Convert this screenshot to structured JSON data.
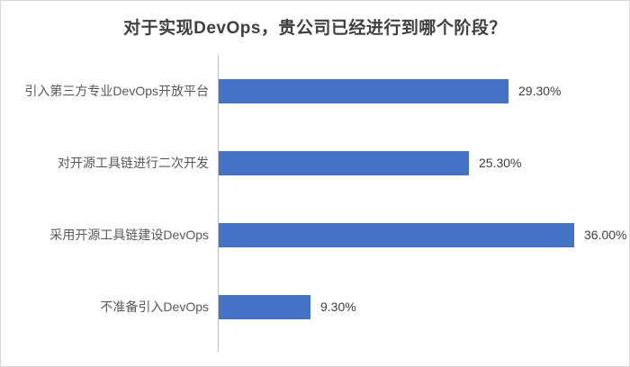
{
  "chart_data": {
    "type": "bar",
    "orientation": "horizontal",
    "title": "对于实现DevOps，贵公司已经进行到哪个阶段？",
    "categories": [
      "引入第三方专业DevOps开放平台",
      "对开源工具链进行二次开发",
      "采用开源工具链建设DevOps",
      "不准备引入DevOps"
    ],
    "values": [
      29.3,
      25.3,
      36.0,
      9.3
    ],
    "value_labels": [
      "29.30%",
      "25.30%",
      "36.00%",
      "9.30%"
    ],
    "xlabel": "",
    "ylabel": "",
    "xlim": [
      0,
      40
    ],
    "grid": false,
    "legend": false,
    "bar_color": "#4472c4",
    "axis_line_color": "#bfbfbf",
    "border_color": "#d9d9d9",
    "title_color": "#3f3f3f",
    "label_color": "#595959",
    "value_color": "#404040"
  }
}
